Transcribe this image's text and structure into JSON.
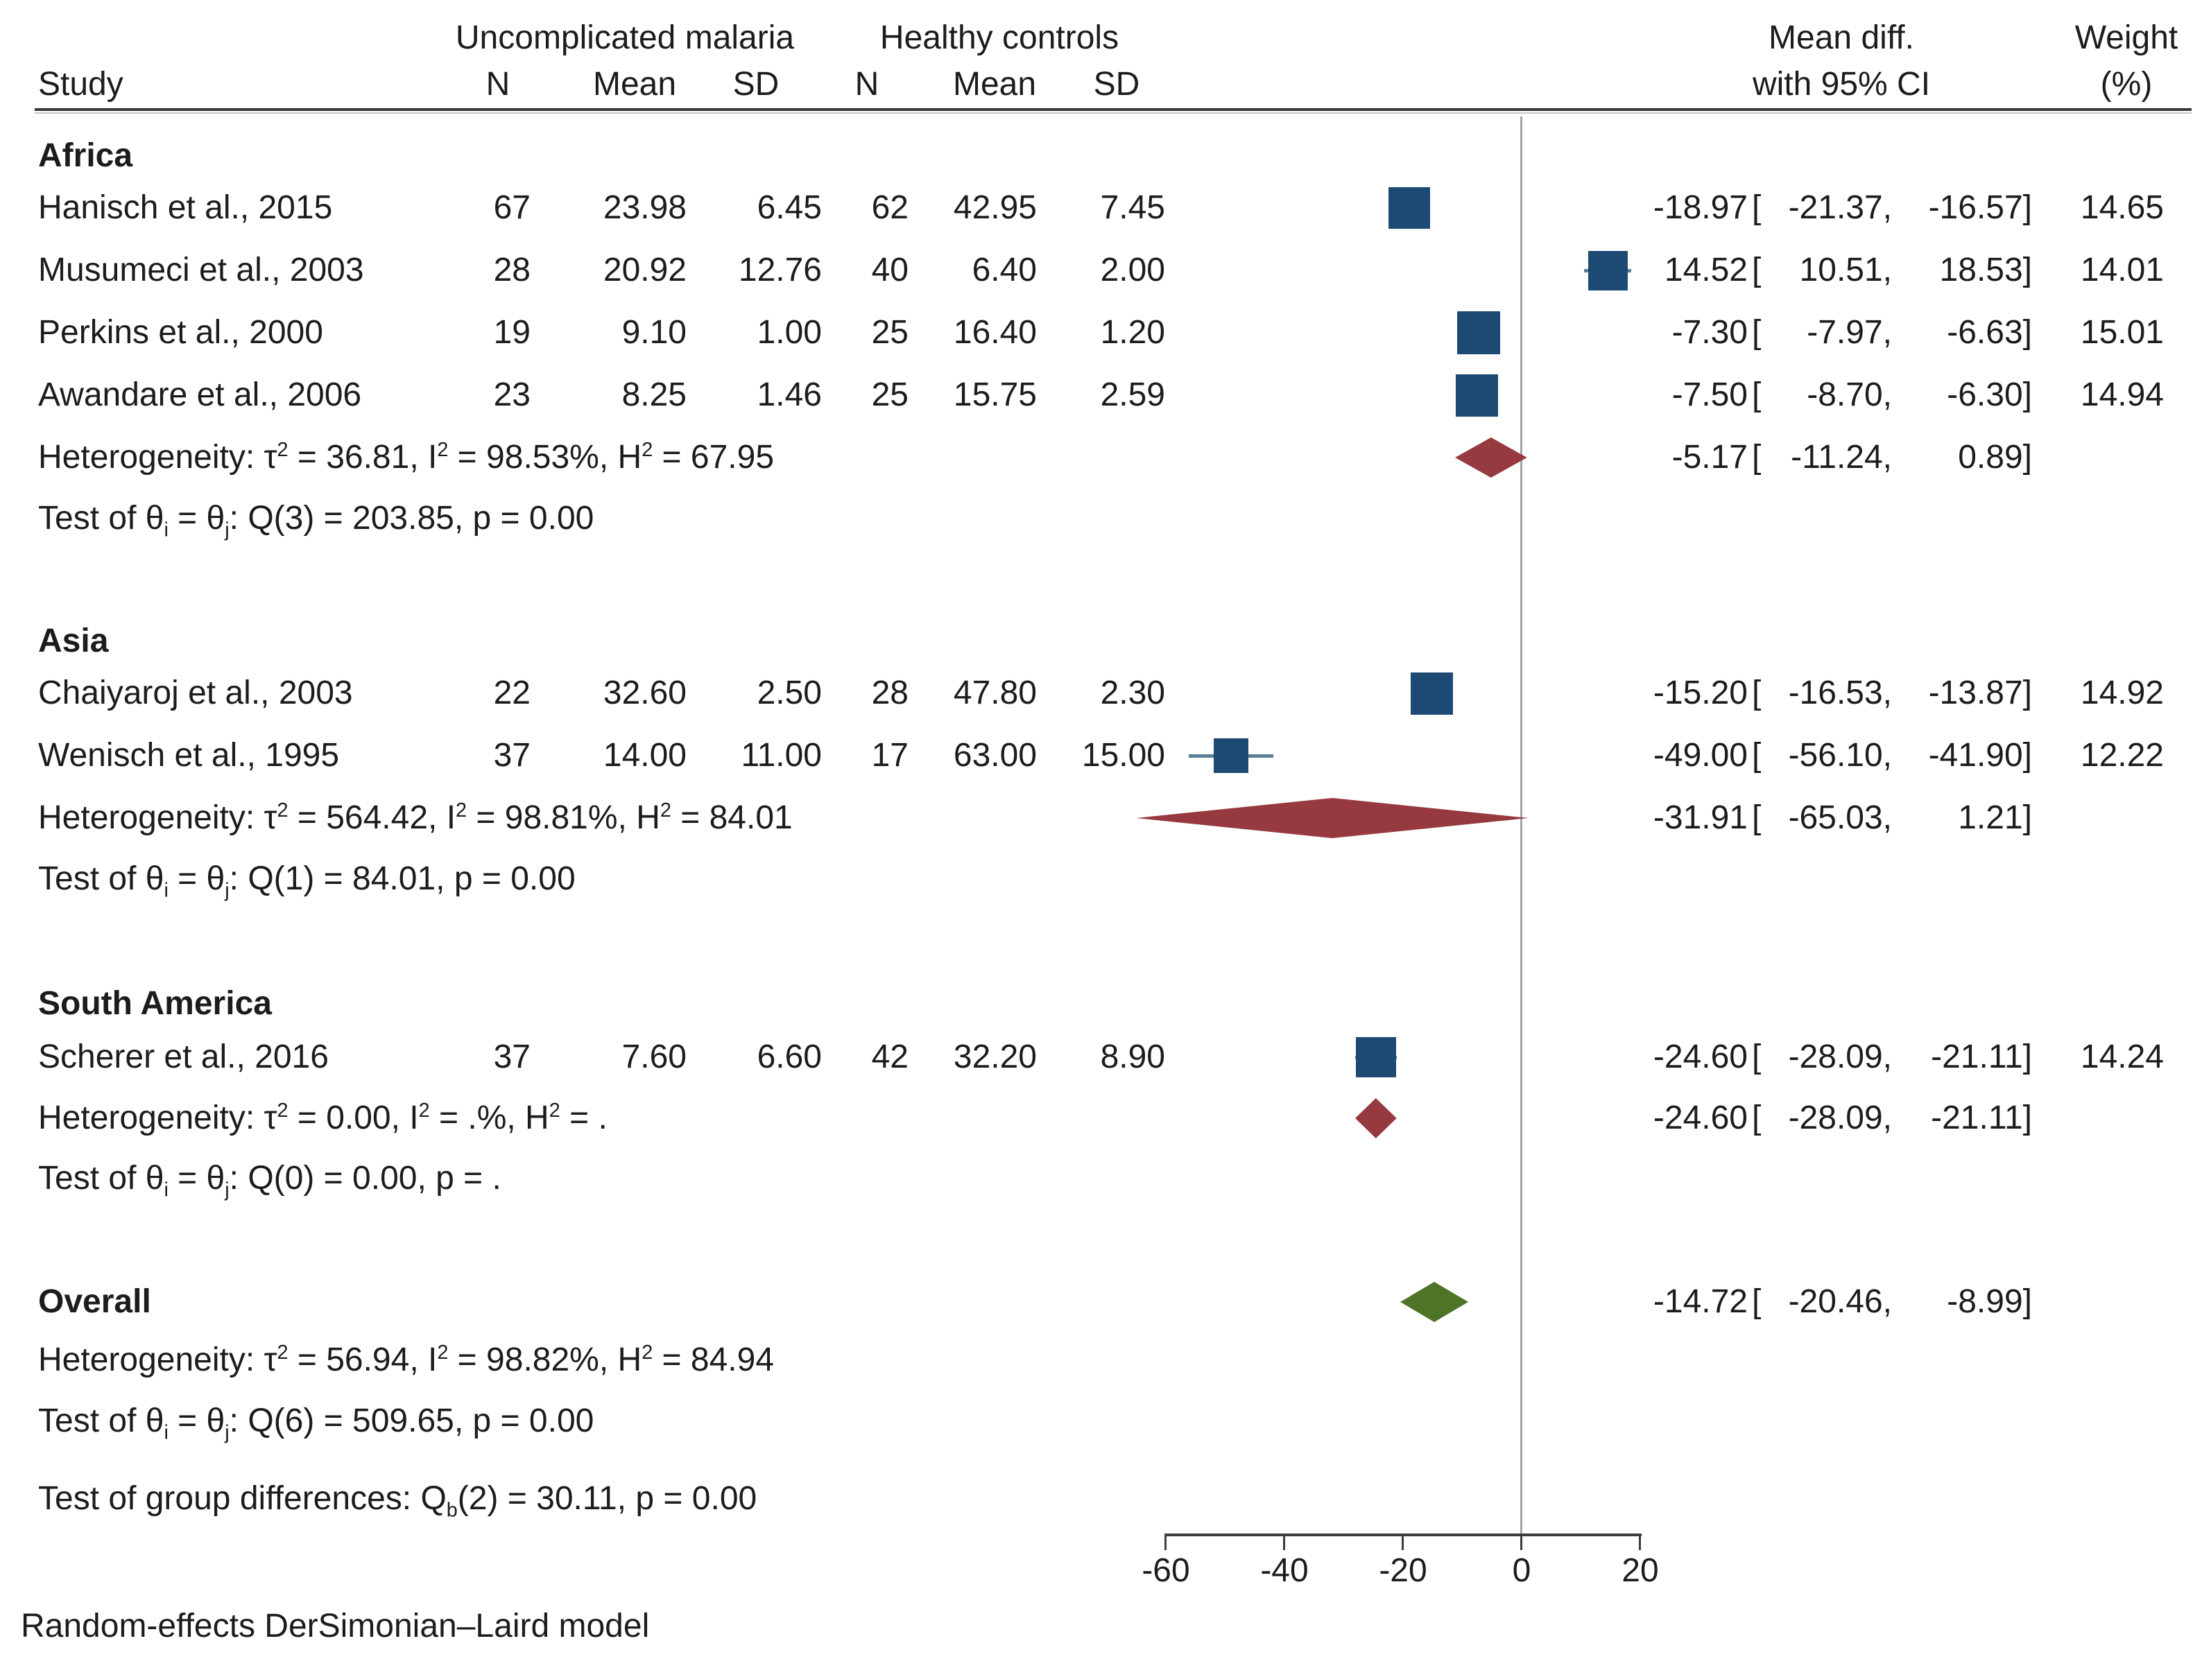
{
  "header": {
    "group1": "Uncomplicated malaria",
    "group2": "Healthy controls",
    "study": "Study",
    "n": "N",
    "mean": "Mean",
    "sd": "SD",
    "mean_diff_1": "Mean diff.",
    "mean_diff_2": "with 95% CI",
    "weight_1": "Weight",
    "weight_2": "(%)"
  },
  "footer": "Random-effects DerSimonian–Laird model",
  "colors": {
    "study_square": "#1d4a73",
    "ci_line": "#5c7f98",
    "group_diamond": "#963a40",
    "overall_diamond": "#4e7427",
    "zero_line": "#a3a3a3",
    "axis": "#3d3d3d"
  },
  "chart_data": {
    "type": "forest",
    "effect_label": "Mean diff. with 95% CI",
    "model": "Random-effects DerSimonian–Laird model",
    "x_axis": {
      "ticks": [
        -60,
        -40,
        -20,
        0,
        20
      ],
      "zero_line": 0,
      "range": [
        -60,
        20
      ]
    },
    "groups": [
      {
        "label": "Africa",
        "studies": [
          {
            "name": "Hanisch et al., 2015",
            "n1": "67",
            "mean1": "23.98",
            "sd1": "6.45",
            "n2": "62",
            "mean2": "42.95",
            "sd2": "7.45",
            "est": "-18.97",
            "lo": "-21.37",
            "hi": "-16.57",
            "weight": "14.65"
          },
          {
            "name": "Musumeci et al., 2003",
            "n1": "28",
            "mean1": "20.92",
            "sd1": "12.76",
            "n2": "40",
            "mean2": "6.40",
            "sd2": "2.00",
            "est": "14.52",
            "lo": "10.51",
            "hi": "18.53",
            "weight": "14.01"
          },
          {
            "name": "Perkins et al., 2000",
            "n1": "19",
            "mean1": "9.10",
            "sd1": "1.00",
            "n2": "25",
            "mean2": "16.40",
            "sd2": "1.20",
            "est": "-7.30",
            "lo": "-7.97",
            "hi": "-6.63",
            "weight": "15.01"
          },
          {
            "name": "Awandare et al., 2006",
            "n1": "23",
            "mean1": "8.25",
            "sd1": "1.46",
            "n2": "25",
            "mean2": "15.75",
            "sd2": "2.59",
            "est": "-7.50",
            "lo": "-8.70",
            "hi": "-6.30",
            "weight": "14.94"
          }
        ],
        "heterogeneity": "Heterogeneity: τ<sup>2</sup> = 36.81, I<sup>2</sup> = 98.53%, H<sup>2</sup> = 67.95",
        "test": "Test of θ<sub>i</sub> = θ<sub>j</sub>: Q(3) = 203.85, p = 0.00",
        "diamond": {
          "est": "-5.17",
          "lo": "-11.24",
          "hi": "0.89"
        }
      },
      {
        "label": "Asia",
        "studies": [
          {
            "name": "Chaiyaroj et al., 2003",
            "n1": "22",
            "mean1": "32.60",
            "sd1": "2.50",
            "n2": "28",
            "mean2": "47.80",
            "sd2": "2.30",
            "est": "-15.20",
            "lo": "-16.53",
            "hi": "-13.87",
            "weight": "14.92"
          },
          {
            "name": "Wenisch et al., 1995",
            "n1": "37",
            "mean1": "14.00",
            "sd1": "11.00",
            "n2": "17",
            "mean2": "63.00",
            "sd2": "15.00",
            "est": "-49.00",
            "lo": "-56.10",
            "hi": "-41.90",
            "weight": "12.22"
          }
        ],
        "heterogeneity": "Heterogeneity: τ<sup>2</sup> = 564.42, I<sup>2</sup> = 98.81%, H<sup>2</sup> = 84.01",
        "test": "Test of θ<sub>i</sub> = θ<sub>j</sub>: Q(1) = 84.01, p = 0.00",
        "diamond": {
          "est": "-31.91",
          "lo": "-65.03",
          "hi": "1.21"
        }
      },
      {
        "label": "South America",
        "studies": [
          {
            "name": "Scherer et al., 2016",
            "n1": "37",
            "mean1": "7.60",
            "sd1": "6.60",
            "n2": "42",
            "mean2": "32.20",
            "sd2": "8.90",
            "est": "-24.60",
            "lo": "-28.09",
            "hi": "-21.11",
            "weight": "14.24"
          }
        ],
        "heterogeneity": "Heterogeneity: τ<sup>2</sup> = 0.00, I<sup>2</sup> = .%, H<sup>2</sup> = .",
        "test": "Test of θ<sub>i</sub> = θ<sub>j</sub>: Q(0) = 0.00, p = .",
        "diamond": {
          "est": "-24.60",
          "lo": "-28.09",
          "hi": "-21.11"
        }
      }
    ],
    "overall": {
      "label": "Overall",
      "diamond": {
        "est": "-14.72",
        "lo": "-20.46",
        "hi": "-8.99"
      },
      "heterogeneity": "Heterogeneity: τ<sup>2</sup> = 56.94, I<sup>2</sup> = 98.82%, H<sup>2</sup> = 84.94",
      "test": "Test of θ<sub>i</sub> = θ<sub>j</sub>: Q(6) = 509.65, p = 0.00",
      "group_diff": "Test of group differences: Q<sub>b</sub>(2) = 30.11, p = 0.00"
    }
  }
}
